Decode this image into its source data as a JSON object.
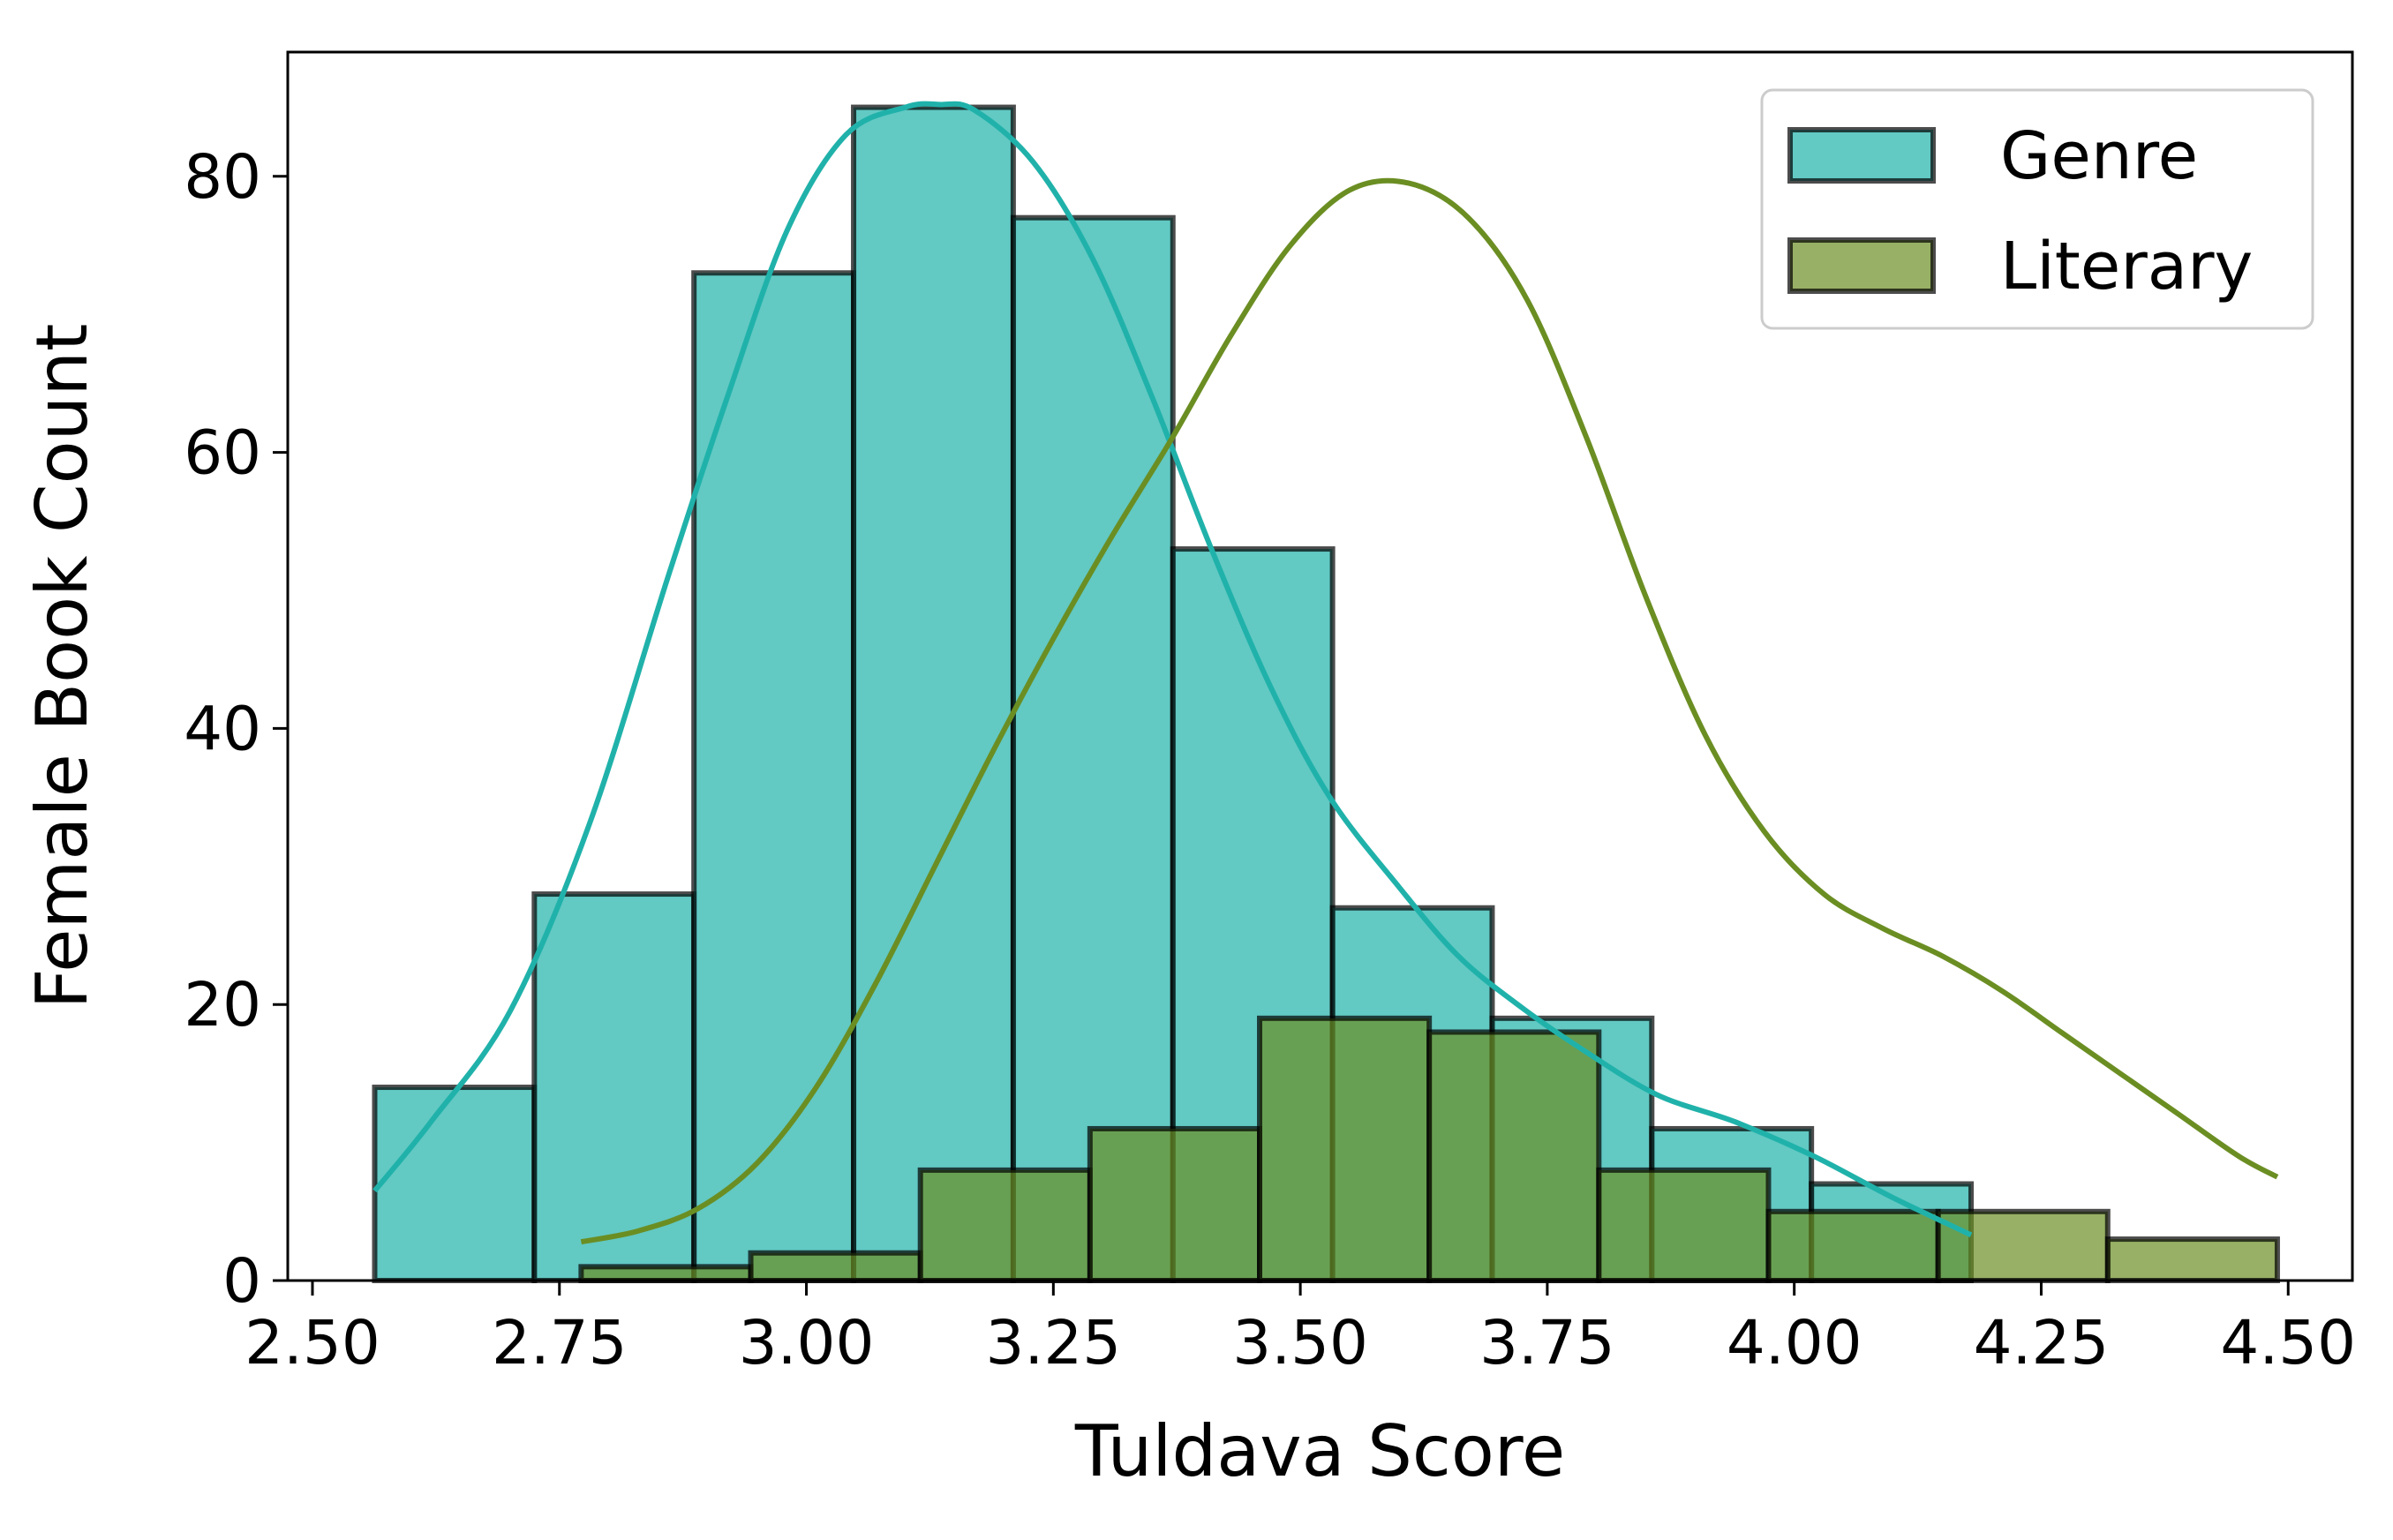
{
  "chart_data": {
    "type": "histogram",
    "xlabel": "Tuldava Score",
    "ylabel": "Female Book Count",
    "ylabel_color": "#ff1493",
    "xlim": [
      2.475,
      4.565
    ],
    "ylim": [
      0,
      89
    ],
    "xticks": [
      "2.50",
      "2.75",
      "3.00",
      "3.25",
      "3.50",
      "3.75",
      "4.00",
      "4.25",
      "4.50"
    ],
    "yticks": [
      "0",
      "20",
      "40",
      "60",
      "80"
    ],
    "legend": {
      "position": "top-right"
    },
    "series": [
      {
        "name": "Genre",
        "color": "#20b2aa",
        "bin_edges": [
          2.563,
          2.7246,
          2.8862,
          3.0478,
          3.2094,
          3.371,
          3.5326,
          3.6942,
          3.8558,
          4.0174,
          4.179
        ],
        "counts": [
          14,
          28,
          73,
          85,
          77,
          53,
          27,
          19,
          11,
          7
        ],
        "kde": {
          "x": [
            2.563,
            2.62,
            2.7,
            2.78,
            2.86,
            2.92,
            2.98,
            3.04,
            3.1,
            3.135,
            3.17,
            3.23,
            3.29,
            3.35,
            3.41,
            3.47,
            3.53,
            3.6,
            3.66,
            3.72,
            3.78,
            3.86,
            3.94,
            4.02,
            4.1,
            4.179
          ],
          "y": [
            6.5,
            11.5,
            19.5,
            33,
            51,
            64,
            76,
            83,
            85,
            85.2,
            84.8,
            81,
            74,
            64,
            53,
            43,
            35,
            28.5,
            23.5,
            20,
            17,
            13.5,
            11.5,
            9,
            6,
            3.3
          ]
        }
      },
      {
        "name": "Literary",
        "color": "#6b8e23",
        "bin_edges": [
          2.772,
          2.9437,
          3.1154,
          3.2871,
          3.4588,
          3.6305,
          3.8022,
          3.9739,
          4.1456,
          4.3173,
          4.489
        ],
        "counts": [
          1,
          2,
          8,
          11,
          19,
          18,
          8,
          5,
          5,
          3
        ],
        "kde": {
          "x": [
            2.772,
            2.83,
            2.89,
            2.95,
            3.01,
            3.07,
            3.13,
            3.19,
            3.25,
            3.31,
            3.37,
            3.43,
            3.49,
            3.55,
            3.61,
            3.67,
            3.73,
            3.79,
            3.85,
            3.91,
            3.97,
            4.03,
            4.09,
            4.15,
            4.21,
            4.27,
            4.33,
            4.39,
            4.45,
            4.489
          ],
          "y": [
            2.8,
            3.6,
            5.2,
            8.5,
            14,
            21.5,
            30,
            38.5,
            46.5,
            54,
            61,
            68.5,
            75,
            79,
            79.5,
            77,
            71,
            61,
            49.5,
            39.5,
            32.5,
            28,
            25.5,
            23.5,
            21,
            18,
            15,
            12,
            9,
            7.5
          ]
        }
      }
    ]
  }
}
